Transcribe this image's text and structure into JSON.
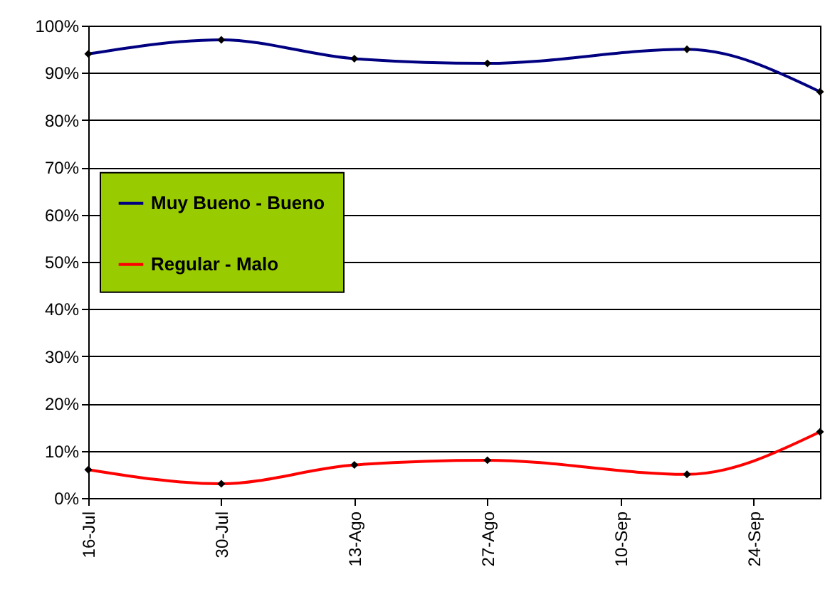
{
  "chart_data": {
    "type": "line",
    "x": [
      "--07-16",
      "--07-30",
      "--08-13",
      "--08-27",
      "--09-17",
      "--10-01"
    ],
    "series": [
      {
        "name": "Muy Bueno - Bueno",
        "color": "#000080",
        "values": [
          94,
          97,
          93,
          92,
          95,
          86
        ]
      },
      {
        "name": "Regular - Malo",
        "color": "#ff0000",
        "values": [
          6,
          3,
          7,
          8,
          5,
          14
        ]
      }
    ],
    "xlim": [
      "--07-16",
      "--10-01"
    ],
    "xticks": [
      {
        "value": "--07-16",
        "label": "16-Jul"
      },
      {
        "value": "--07-30",
        "label": "30-Jul"
      },
      {
        "value": "--08-13",
        "label": "13-Ago"
      },
      {
        "value": "--08-27",
        "label": "27-Ago"
      },
      {
        "value": "--09-10",
        "label": "10-Sep"
      },
      {
        "value": "--09-24",
        "label": "24-Sep"
      }
    ],
    "ylim": [
      0,
      100
    ],
    "yticks": [
      {
        "value": 0,
        "label": "0%"
      },
      {
        "value": 10,
        "label": "10%"
      },
      {
        "value": 20,
        "label": "20%"
      },
      {
        "value": 30,
        "label": "30%"
      },
      {
        "value": 40,
        "label": "40%"
      },
      {
        "value": 50,
        "label": "50%"
      },
      {
        "value": 60,
        "label": "60%"
      },
      {
        "value": 70,
        "label": "70%"
      },
      {
        "value": 80,
        "label": "80%"
      },
      {
        "value": 90,
        "label": "90%"
      },
      {
        "value": 100,
        "label": "100%"
      }
    ],
    "grid": "y",
    "legend": "left",
    "marker": "diamond",
    "line_style": "solid"
  }
}
